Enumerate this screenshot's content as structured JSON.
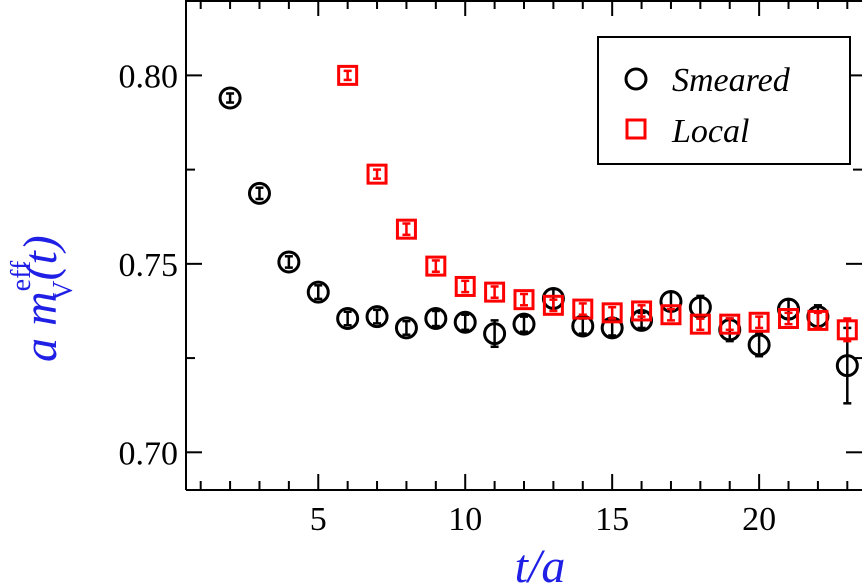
{
  "chart_data": {
    "type": "scatter",
    "xlabel": "t/a",
    "ylabel": {
      "prefix": "a m",
      "superscript": "eff",
      "subscript": "V",
      "suffix": "(t)"
    },
    "xlim": [
      0.5,
      23.5
    ],
    "ylim": [
      0.69,
      0.82
    ],
    "xticks": [
      5,
      10,
      15,
      20
    ],
    "yticks": [
      0.7,
      0.75,
      0.8
    ],
    "xtick_labels": [
      "5",
      "10",
      "15",
      "20"
    ],
    "ytick_labels": [
      "0.70",
      "0.75",
      "0.80"
    ],
    "grid": false,
    "legend_position": "top-right",
    "colors": {
      "smeared": "#000000",
      "local": "#ff0000",
      "axis_label": "#1f1fe6"
    },
    "series": [
      {
        "name": "Smeared",
        "marker": "circle",
        "x": [
          2,
          3,
          4,
          5,
          6,
          7,
          8,
          9,
          10,
          11,
          12,
          13,
          14,
          15,
          16,
          17,
          18,
          19,
          20,
          21,
          22,
          23
        ],
        "y": [
          0.794,
          0.7687,
          0.7505,
          0.7425,
          0.7355,
          0.736,
          0.733,
          0.7355,
          0.7345,
          0.7315,
          0.734,
          0.7408,
          0.7335,
          0.733,
          0.735,
          0.74,
          0.7385,
          0.7325,
          0.7285,
          0.738,
          0.736,
          0.723
        ],
        "err": [
          0.0012,
          0.0015,
          0.0015,
          0.0018,
          0.0018,
          0.0018,
          0.0018,
          0.002,
          0.002,
          0.0035,
          0.002,
          0.0025,
          0.002,
          0.002,
          0.002,
          0.0025,
          0.003,
          0.003,
          0.003,
          0.0025,
          0.003,
          0.01
        ]
      },
      {
        "name": "Local",
        "marker": "square",
        "x": [
          6,
          7,
          8,
          9,
          10,
          11,
          12,
          13,
          14,
          15,
          16,
          17,
          18,
          19,
          20,
          21,
          22,
          23
        ],
        "y": [
          0.8,
          0.7738,
          0.7592,
          0.7494,
          0.744,
          0.7425,
          0.7405,
          0.739,
          0.738,
          0.737,
          0.7375,
          0.7365,
          0.734,
          0.734,
          0.7345,
          0.7355,
          0.735,
          0.7325
        ],
        "err": [
          0.0012,
          0.0012,
          0.0015,
          0.0015,
          0.0015,
          0.0015,
          0.0015,
          0.0015,
          0.0015,
          0.0015,
          0.0015,
          0.0015,
          0.0015,
          0.0015,
          0.0015,
          0.0015,
          0.002,
          0.003
        ]
      }
    ]
  }
}
